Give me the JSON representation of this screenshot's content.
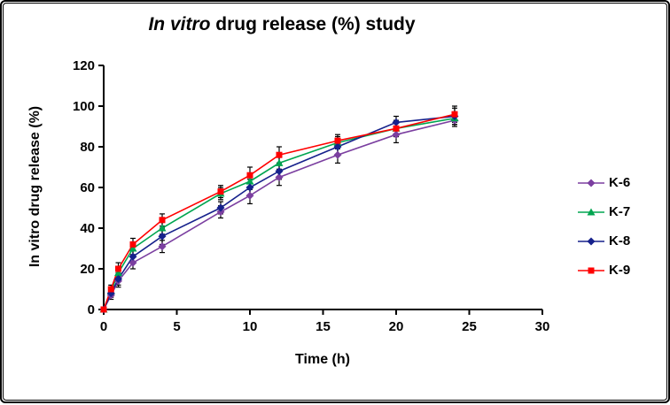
{
  "title": {
    "italic": "In vitro",
    "rest": " drug release (%) study"
  },
  "axes": {
    "x_label": "Time (h)",
    "y_label": "In vitro drug release (%)",
    "x_min": 0,
    "x_max": 30,
    "x_step": 5,
    "y_min": 0,
    "y_max": 120,
    "y_step": 20
  },
  "colors": {
    "axis": "#000000",
    "error_bar": "#000000",
    "background": "#ffffff"
  },
  "chart_data": {
    "type": "line",
    "title": "In vitro drug release (%) study",
    "xlabel": "Time (h)",
    "ylabel": "In vitro drug release (%)",
    "xlim": [
      0,
      30
    ],
    "ylim": [
      0,
      120
    ],
    "grid": false,
    "error_bars": true,
    "legend_position": "right",
    "x": [
      0,
      0.5,
      1,
      2,
      4,
      8,
      10,
      12,
      16,
      20,
      24
    ],
    "series": [
      {
        "name": "K-6",
        "color": "#7B3FA0",
        "marker": "diamond",
        "values": [
          0,
          7,
          14,
          23,
          31,
          48,
          56,
          65,
          76,
          86,
          93
        ],
        "errors": [
          0,
          2,
          3,
          3,
          3,
          3,
          4,
          4,
          4,
          4,
          3
        ]
      },
      {
        "name": "K-7",
        "color": "#00A550",
        "marker": "triangle",
        "values": [
          0,
          9,
          18,
          30,
          40,
          57,
          63,
          72,
          82,
          89,
          94
        ],
        "errors": [
          0,
          2,
          3,
          3,
          3,
          3,
          4,
          4,
          3,
          4,
          3
        ]
      },
      {
        "name": "K-8",
        "color": "#16218C",
        "marker": "diamond",
        "values": [
          0,
          8,
          15,
          26,
          36,
          50,
          60,
          68,
          80,
          92,
          95
        ],
        "errors": [
          0,
          2,
          3,
          3,
          4,
          3,
          4,
          4,
          4,
          3,
          4
        ]
      },
      {
        "name": "K-9",
        "color": "#FF0000",
        "marker": "square",
        "values": [
          0,
          10,
          20,
          32,
          44,
          58,
          66,
          76,
          83,
          89,
          96
        ],
        "errors": [
          0,
          2,
          3,
          3,
          3,
          3,
          4,
          4,
          3,
          4,
          4
        ]
      }
    ]
  }
}
